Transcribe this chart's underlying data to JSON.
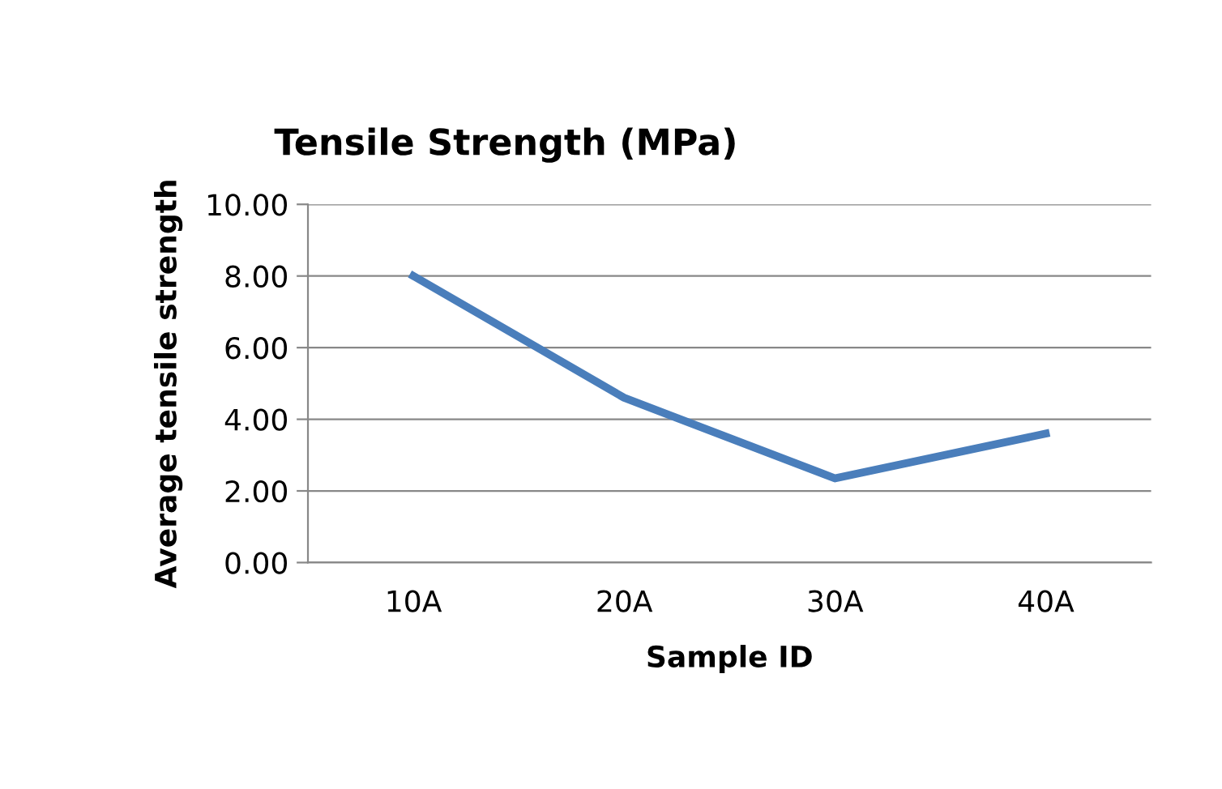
{
  "chart_data": {
    "type": "line",
    "title": "Tensile Strength (MPa)",
    "xlabel": "Sample ID",
    "ylabel": "Average tensile strength",
    "categories": [
      "10A",
      "20A",
      "30A",
      "40A"
    ],
    "series": [
      {
        "color": "#4a7ebb",
        "values": [
          8.0,
          4.6,
          2.35,
          3.6
        ]
      }
    ],
    "ylim": [
      0,
      10
    ],
    "yticks": [
      {
        "value": 0,
        "label": "0.00"
      },
      {
        "value": 2,
        "label": "2.00"
      },
      {
        "value": 4,
        "label": "4.00"
      },
      {
        "value": 6,
        "label": "6.00"
      },
      {
        "value": 8,
        "label": "8.00"
      },
      {
        "value": 10,
        "label": "10.00"
      }
    ],
    "grid": "y",
    "legend": false,
    "marker": "none",
    "line_style": "solid"
  }
}
